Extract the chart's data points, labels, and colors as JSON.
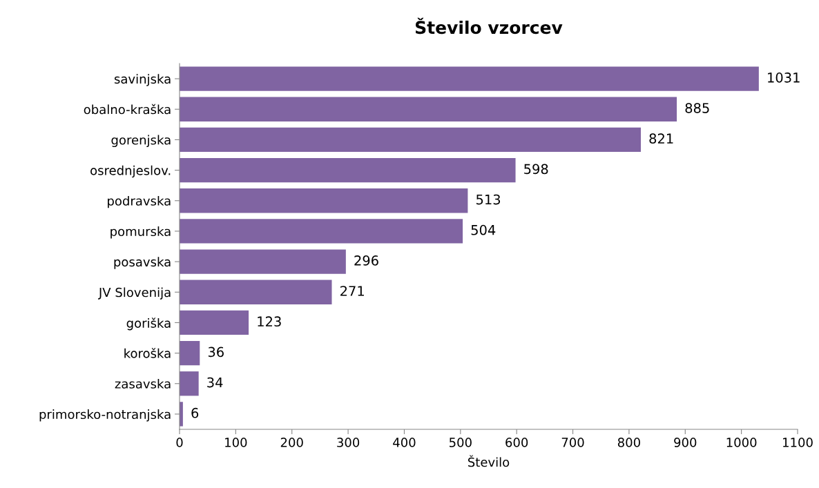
{
  "chart_data": {
    "type": "bar",
    "orientation": "horizontal",
    "title": "Število vzorcev",
    "xlabel": "Število",
    "categories": [
      "savinjska",
      "obalno-kraška",
      "gorenjska",
      "osrednjeslov.",
      "podravska",
      "pomurska",
      "posavska",
      "JV Slovenija",
      "goriška",
      "koroška",
      "zasavska",
      "primorsko-notranjska"
    ],
    "values": [
      1031,
      885,
      821,
      598,
      513,
      504,
      296,
      271,
      123,
      36,
      34,
      6
    ],
    "color": "#8064a2",
    "xlim": [
      0,
      1100
    ],
    "xticks": [
      0,
      100,
      200,
      300,
      400,
      500,
      600,
      700,
      800,
      900,
      1000,
      1100
    ],
    "grid": false,
    "data_labels": true,
    "legend": false
  }
}
